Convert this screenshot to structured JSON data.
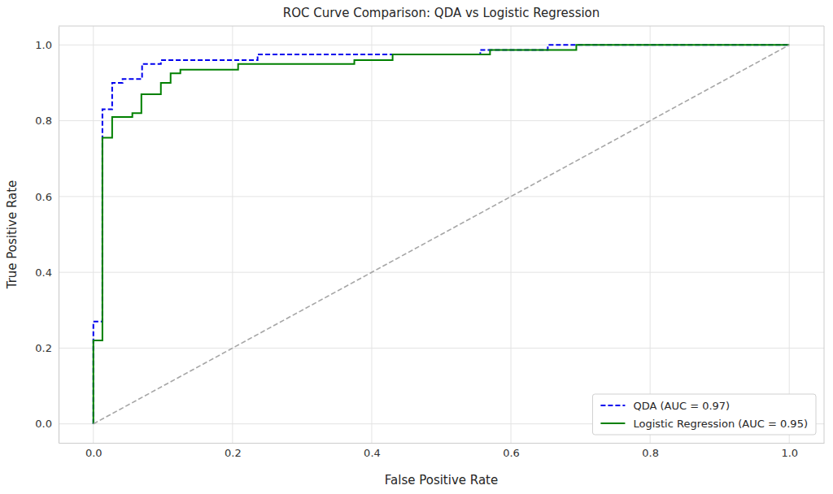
{
  "chart_data": {
    "type": "line",
    "title": "ROC Curve Comparison: QDA vs Logistic Regression",
    "x_label": "False Positive Rate",
    "y_label": "True Positive Rate",
    "xlim": [
      -0.05,
      1.05
    ],
    "ylim": [
      -0.05,
      1.05
    ],
    "xticks": [
      {
        "value": 0,
        "label": "0.0"
      },
      {
        "value": 0.2,
        "label": "0.2"
      },
      {
        "value": 0.4,
        "label": "0.4"
      },
      {
        "value": 0.6,
        "label": "0.6"
      },
      {
        "value": 0.8,
        "label": "0.8"
      },
      {
        "value": 1,
        "label": "1.0"
      }
    ],
    "yticks": [
      {
        "value": 0,
        "label": "0.0"
      },
      {
        "value": 0.2,
        "label": "0.2"
      },
      {
        "value": 0.4,
        "label": "0.4"
      },
      {
        "value": 0.6,
        "label": "0.6"
      },
      {
        "value": 0.8,
        "label": "0.8"
      },
      {
        "value": 1,
        "label": "1.0"
      }
    ],
    "grid": true,
    "legend": "lower right",
    "series": [
      {
        "name": "QDA (AUC = 0.97)",
        "color": "#0000ee",
        "line_style": "dashed",
        "x": [
          0,
          0,
          0,
          0.013,
          0.013,
          0.027,
          0.027,
          0.042,
          0.042,
          0.07,
          0.07,
          0.097,
          0.097,
          0.236,
          0.236,
          0.556,
          0.556,
          0.653,
          0.653,
          1
        ],
        "values": [
          0,
          0.22,
          0.27,
          0.27,
          0.83,
          0.83,
          0.9,
          0.9,
          0.91,
          0.91,
          0.95,
          0.95,
          0.96,
          0.96,
          0.975,
          0.975,
          0.987,
          0.987,
          1,
          1
        ]
      },
      {
        "name": "Logistic Regression (AUC = 0.95)",
        "color": "#008000",
        "line_style": "solid",
        "x": [
          0,
          0,
          0.013,
          0.013,
          0.027,
          0.027,
          0.056,
          0.056,
          0.069,
          0.069,
          0.097,
          0.097,
          0.111,
          0.111,
          0.125,
          0.125,
          0.208,
          0.208,
          0.375,
          0.375,
          0.43,
          0.43,
          0.57,
          0.57,
          0.694,
          0.694,
          1
        ],
        "values": [
          0,
          0.22,
          0.22,
          0.755,
          0.755,
          0.81,
          0.81,
          0.82,
          0.82,
          0.87,
          0.87,
          0.9,
          0.9,
          0.925,
          0.925,
          0.935,
          0.935,
          0.95,
          0.95,
          0.96,
          0.96,
          0.975,
          0.975,
          0.987,
          0.987,
          1,
          1
        ]
      },
      {
        "color": "#a6a6a6",
        "line_style": "dashed",
        "x": [
          0,
          1
        ],
        "values": [
          0,
          1
        ]
      }
    ]
  }
}
